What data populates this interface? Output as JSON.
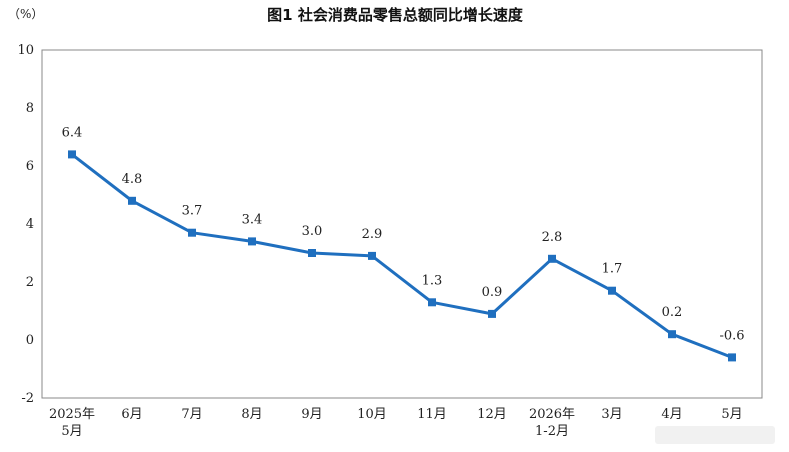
{
  "chart_data": {
    "type": "line",
    "title": "图1  社会消费品零售总额同比增长速度",
    "unit_label": "（%）",
    "xlabel": "",
    "ylabel": "",
    "ylim": [
      -2,
      10
    ],
    "y_ticks": [
      -2,
      0,
      2,
      4,
      6,
      8,
      10
    ],
    "y_tick_labels": [
      "-2",
      "0",
      "2",
      "4",
      "6",
      "8",
      "10"
    ],
    "categories": [
      "2025年5月",
      "6月",
      "7月",
      "8月",
      "9月",
      "10月",
      "11月",
      "12月",
      "2026年1-2月",
      "3月",
      "4月",
      "5月"
    ],
    "category_labels": [
      [
        "2025年",
        "5月"
      ],
      [
        "6月"
      ],
      [
        "7月"
      ],
      [
        "8月"
      ],
      [
        "9月"
      ],
      [
        "10月"
      ],
      [
        "11月"
      ],
      [
        "12月"
      ],
      [
        "2026年",
        "1-2月"
      ],
      [
        "3月"
      ],
      [
        "4月"
      ],
      [
        "5月"
      ]
    ],
    "series": [
      {
        "values": [
          6.4,
          4.8,
          3.7,
          3.4,
          3.0,
          2.9,
          1.3,
          0.9,
          2.8,
          1.7,
          0.2,
          -0.6
        ],
        "labels": [
          "6.4",
          "4.8",
          "3.7",
          "3.4",
          "3.0",
          "2.9",
          "1.3",
          "0.9",
          "2.8",
          "1.7",
          "0.2",
          "-0.6"
        ],
        "color": "#1f6fbf"
      }
    ],
    "grid": false,
    "legend": "none"
  }
}
